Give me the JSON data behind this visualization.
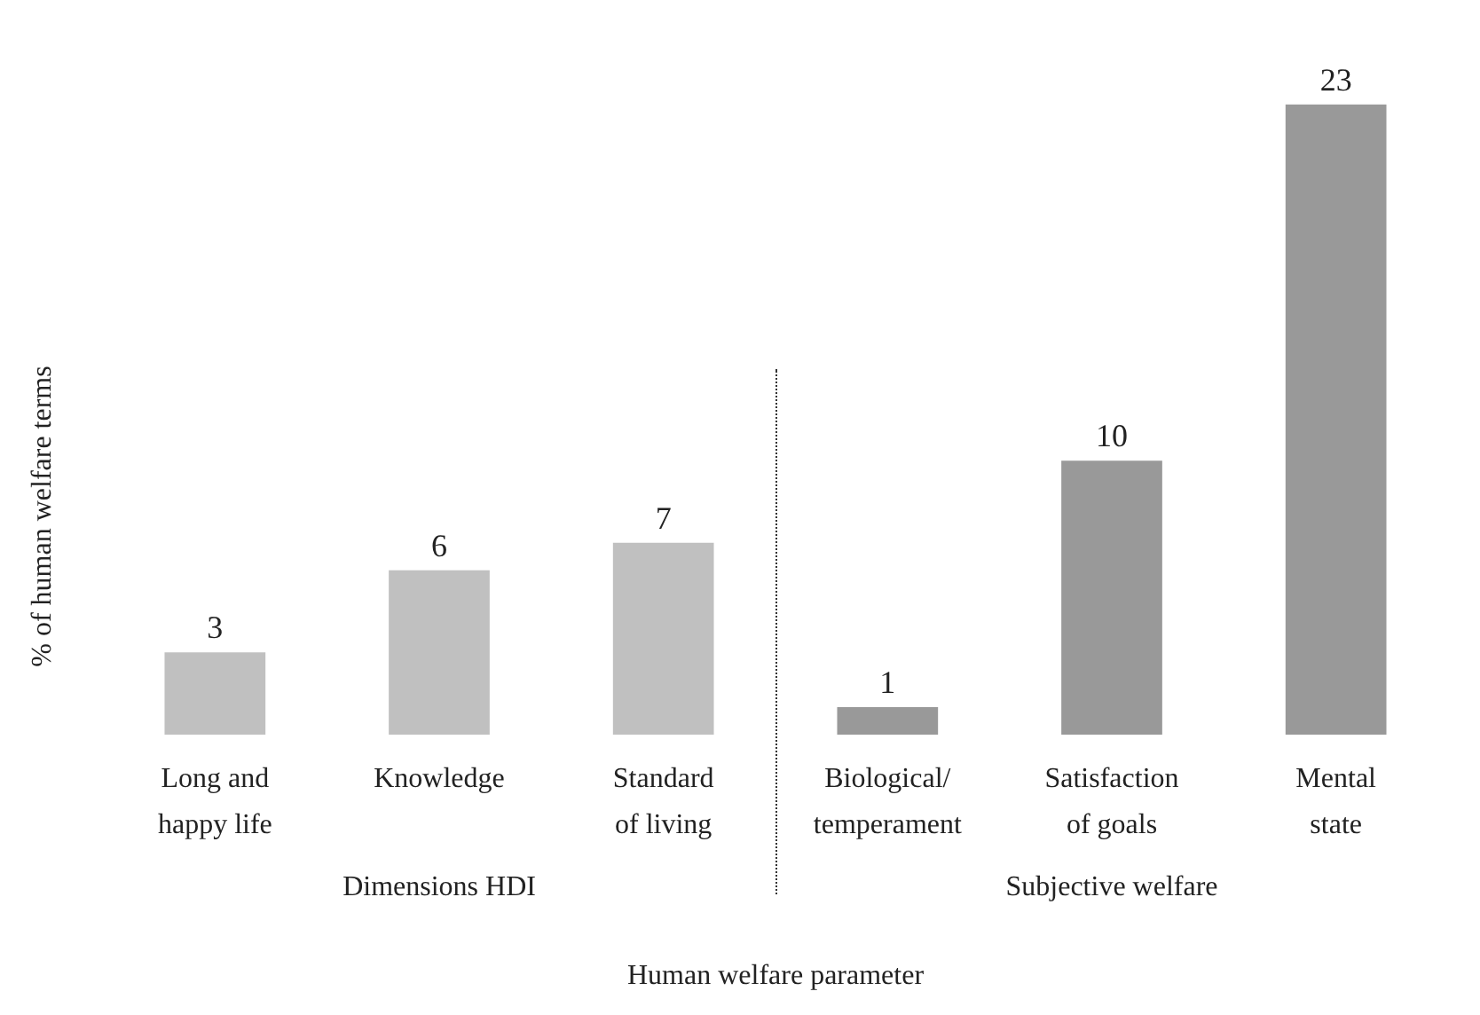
{
  "chart_data": {
    "type": "bar",
    "xlabel": "Human welfare parameter",
    "ylabel": "% of human welfare terms",
    "categories": [
      "Long and\nhappy life",
      "Knowledge",
      "Standard\nof living",
      "Biological/\ntemperament",
      "Satisfaction\nof goals",
      "Mental\nstate"
    ],
    "values": [
      3,
      6,
      7,
      1,
      10,
      23
    ],
    "colors": [
      "#c0c0c0",
      "#c0c0c0",
      "#c0c0c0",
      "#999999",
      "#999999",
      "#999999"
    ],
    "data_labels": true,
    "annotations": [
      "Dimensions HDI",
      "Subjective welfare"
    ],
    "grid": false
  }
}
